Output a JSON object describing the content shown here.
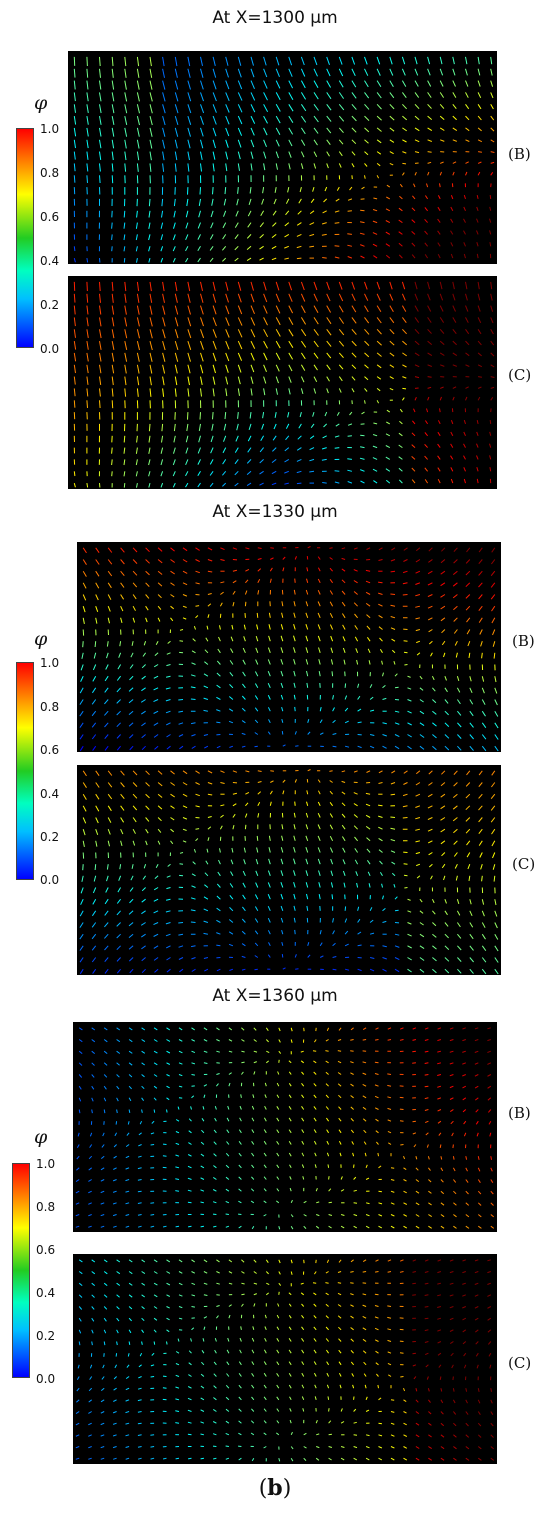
{
  "caption": {
    "open": "(",
    "letter": "b",
    "close": ")"
  },
  "colorbar": {
    "symbol": "φ",
    "ticks": [
      "1.0",
      "0.8",
      "0.6",
      "0.4",
      "0.2",
      "0.0"
    ],
    "colors": [
      "#0000ff",
      "#00bfff",
      "#00ffc0",
      "#22cc22",
      "#ffff00",
      "#ff8000",
      "#ff0000"
    ]
  },
  "groups": [
    {
      "title": "At X=1300 μm",
      "panels": [
        {
          "label": "(B)",
          "pattern": "b1300"
        },
        {
          "label": "(C)",
          "pattern": "c1300"
        }
      ]
    },
    {
      "title": "At X=1330 μm",
      "panels": [
        {
          "label": "(B)",
          "pattern": "b1330"
        },
        {
          "label": "(C)",
          "pattern": "c1330"
        }
      ]
    },
    {
      "title": "At X=1360 μm",
      "panels": [
        {
          "label": "(B)",
          "pattern": "b1360"
        },
        {
          "label": "(C)",
          "pattern": "c1360"
        }
      ]
    }
  ]
}
